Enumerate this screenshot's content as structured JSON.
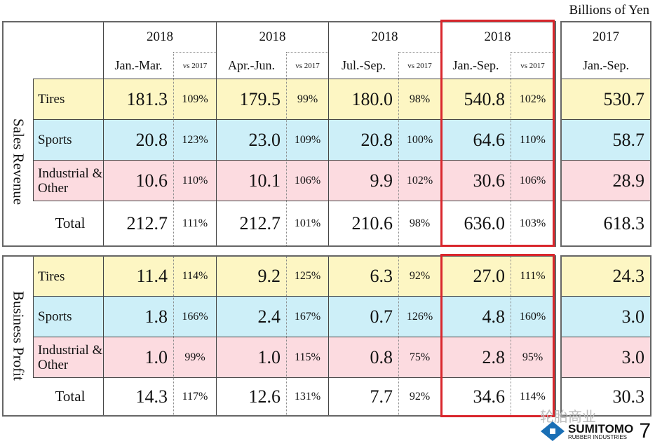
{
  "unit_label": "Billions of Yen",
  "header": {
    "columns": [
      {
        "year": "2018",
        "period": "Jan.-Mar.",
        "vs": "vs 2017"
      },
      {
        "year": "2018",
        "period": "Apr.-Jun.",
        "vs": "vs 2017"
      },
      {
        "year": "2018",
        "period": "Jul.-Sep.",
        "vs": "vs 2017"
      },
      {
        "year": "2018",
        "period": "Jan.-Sep.",
        "vs": "vs 2017"
      }
    ],
    "prior": {
      "year": "2017",
      "period": "Jan.-Sep."
    }
  },
  "colors": {
    "tires": "#fdf6c3",
    "sports": "#cdeff8",
    "industrial": "#fcdbe0",
    "total": "#ffffff",
    "highlight": "#d9262c"
  },
  "sections": [
    {
      "title": "Sales Revenue",
      "rows": [
        {
          "label": "Tires",
          "color": "tires",
          "values": [
            "181.3",
            "179.5",
            "180.0",
            "540.8"
          ],
          "pcts": [
            "109%",
            "99%",
            "98%",
            "102%"
          ],
          "prior": "530.7"
        },
        {
          "label": "Sports",
          "color": "sports",
          "values": [
            "20.8",
            "23.0",
            "20.8",
            "64.6"
          ],
          "pcts": [
            "123%",
            "109%",
            "100%",
            "110%"
          ],
          "prior": "58.7"
        },
        {
          "label": "Industrial & Other",
          "color": "industrial",
          "values": [
            "10.6",
            "10.1",
            "9.9",
            "30.6"
          ],
          "pcts": [
            "110%",
            "106%",
            "102%",
            "106%"
          ],
          "prior": "28.9"
        },
        {
          "label": "Total",
          "color": "total",
          "values": [
            "212.7",
            "212.7",
            "210.6",
            "636.0"
          ],
          "pcts": [
            "111%",
            "101%",
            "98%",
            "103%"
          ],
          "prior": "618.3"
        }
      ]
    },
    {
      "title": "Business Profit",
      "rows": [
        {
          "label": "Tires",
          "color": "tires",
          "values": [
            "11.4",
            "9.2",
            "6.3",
            "27.0"
          ],
          "pcts": [
            "114%",
            "125%",
            "92%",
            "111%"
          ],
          "prior": "24.3"
        },
        {
          "label": "Sports",
          "color": "sports",
          "values": [
            "1.8",
            "2.4",
            "0.7",
            "4.8"
          ],
          "pcts": [
            "166%",
            "167%",
            "126%",
            "160%"
          ],
          "prior": "3.0"
        },
        {
          "label": "Industrial & Other",
          "color": "industrial",
          "values": [
            "1.0",
            "1.0",
            "0.8",
            "2.8"
          ],
          "pcts": [
            "99%",
            "115%",
            "75%",
            "95%"
          ],
          "prior": "3.0"
        },
        {
          "label": "Total",
          "color": "total",
          "values": [
            "14.3",
            "12.6",
            "7.7",
            "34.6"
          ],
          "pcts": [
            "117%",
            "131%",
            "92%",
            "114%"
          ],
          "prior": "30.3"
        }
      ]
    }
  ],
  "watermark": "轮胎商业",
  "logo": {
    "name": "SUMITOMO",
    "sub": "RUBBER INDUSTRIES"
  },
  "page_number": "7"
}
